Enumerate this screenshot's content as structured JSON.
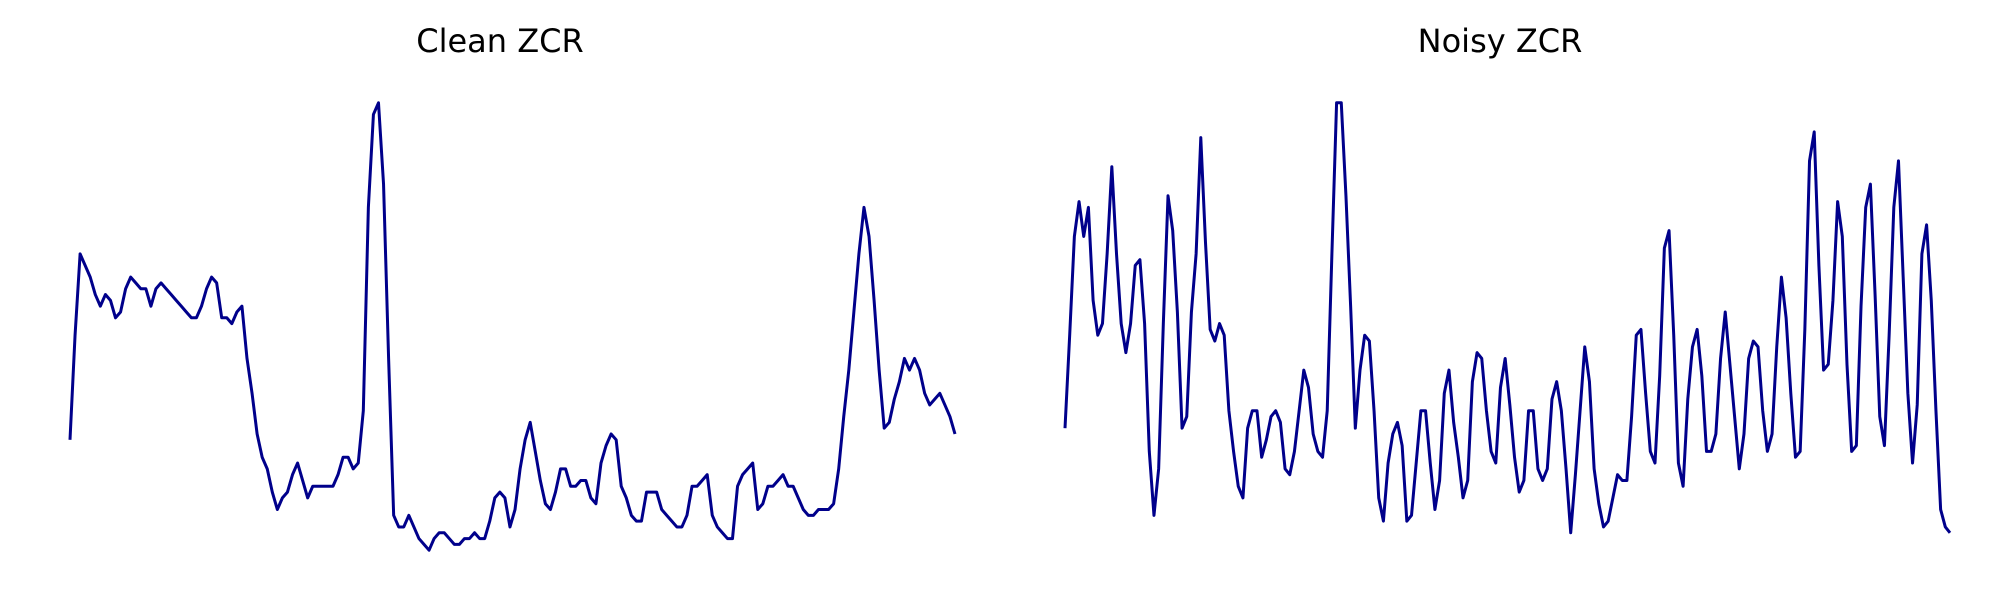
{
  "chart_data": [
    {
      "type": "line",
      "title": "Clean ZCR",
      "xlabel": "",
      "ylabel": "",
      "axes_visible": false,
      "grid": false,
      "line_color": "#00008b",
      "series": [
        {
          "values": [
            0.3,
            0.48,
            0.62,
            0.6,
            0.58,
            0.55,
            0.53,
            0.55,
            0.54,
            0.51,
            0.52,
            0.56,
            0.58,
            0.57,
            0.56,
            0.56,
            0.53,
            0.56,
            0.57,
            0.56,
            0.55,
            0.54,
            0.53,
            0.52,
            0.51,
            0.51,
            0.53,
            0.56,
            0.58,
            0.57,
            0.51,
            0.51,
            0.5,
            0.52,
            0.53,
            0.44,
            0.38,
            0.31,
            0.27,
            0.25,
            0.21,
            0.18,
            0.2,
            0.21,
            0.24,
            0.26,
            0.23,
            0.2,
            0.22,
            0.22,
            0.22,
            0.22,
            0.22,
            0.24,
            0.27,
            0.27,
            0.25,
            0.26,
            0.35,
            0.7,
            0.86,
            0.88,
            0.74,
            0.44,
            0.17,
            0.15,
            0.15,
            0.17,
            0.15,
            0.13,
            0.12,
            0.11,
            0.13,
            0.14,
            0.14,
            0.13,
            0.12,
            0.12,
            0.13,
            0.13,
            0.14,
            0.13,
            0.13,
            0.16,
            0.2,
            0.21,
            0.2,
            0.15,
            0.18,
            0.25,
            0.3,
            0.33,
            0.28,
            0.23,
            0.19,
            0.18,
            0.21,
            0.25,
            0.25,
            0.22,
            0.22,
            0.23,
            0.23,
            0.2,
            0.19,
            0.26,
            0.29,
            0.31,
            0.3,
            0.22,
            0.2,
            0.17,
            0.16,
            0.16,
            0.21,
            0.21,
            0.21,
            0.18,
            0.17,
            0.16,
            0.15,
            0.15,
            0.17,
            0.22,
            0.22,
            0.23,
            0.24,
            0.17,
            0.15,
            0.14,
            0.13,
            0.13,
            0.22,
            0.24,
            0.25,
            0.26,
            0.18,
            0.19,
            0.22,
            0.22,
            0.23,
            0.24,
            0.22,
            0.22,
            0.2,
            0.18,
            0.17,
            0.17,
            0.18,
            0.18,
            0.18,
            0.19,
            0.25,
            0.34,
            0.42,
            0.52,
            0.62,
            0.7,
            0.65,
            0.54,
            0.42,
            0.32,
            0.33,
            0.37,
            0.4,
            0.44,
            0.42,
            0.44,
            0.42,
            0.38,
            0.36,
            0.37,
            0.38,
            0.36,
            0.34,
            0.31
          ]
        }
      ]
    },
    {
      "type": "line",
      "title": "Noisy ZCR",
      "xlabel": "",
      "ylabel": "",
      "axes_visible": false,
      "grid": false,
      "line_color": "#00008b",
      "series": [
        {
          "values": [
            0.32,
            0.48,
            0.65,
            0.71,
            0.65,
            0.7,
            0.54,
            0.48,
            0.5,
            0.62,
            0.77,
            0.62,
            0.5,
            0.45,
            0.5,
            0.6,
            0.61,
            0.5,
            0.28,
            0.17,
            0.25,
            0.5,
            0.72,
            0.66,
            0.52,
            0.32,
            0.34,
            0.52,
            0.62,
            0.82,
            0.64,
            0.49,
            0.47,
            0.5,
            0.48,
            0.35,
            0.28,
            0.22,
            0.2,
            0.32,
            0.35,
            0.35,
            0.27,
            0.3,
            0.34,
            0.35,
            0.33,
            0.25,
            0.24,
            0.28,
            0.35,
            0.42,
            0.39,
            0.31,
            0.28,
            0.27,
            0.35,
            0.62,
            0.88,
            0.88,
            0.72,
            0.53,
            0.32,
            0.42,
            0.48,
            0.47,
            0.35,
            0.2,
            0.16,
            0.26,
            0.31,
            0.33,
            0.29,
            0.16,
            0.17,
            0.26,
            0.35,
            0.35,
            0.26,
            0.18,
            0.23,
            0.38,
            0.42,
            0.33,
            0.27,
            0.2,
            0.23,
            0.4,
            0.45,
            0.44,
            0.35,
            0.28,
            0.26,
            0.39,
            0.44,
            0.36,
            0.27,
            0.21,
            0.23,
            0.35,
            0.35,
            0.25,
            0.23,
            0.25,
            0.37,
            0.4,
            0.35,
            0.25,
            0.14,
            0.24,
            0.35,
            0.46,
            0.4,
            0.25,
            0.19,
            0.15,
            0.16,
            0.2,
            0.24,
            0.23,
            0.23,
            0.34,
            0.48,
            0.49,
            0.38,
            0.28,
            0.26,
            0.41,
            0.63,
            0.66,
            0.48,
            0.26,
            0.22,
            0.37,
            0.46,
            0.49,
            0.41,
            0.28,
            0.28,
            0.31,
            0.44,
            0.52,
            0.43,
            0.34,
            0.25,
            0.31,
            0.44,
            0.47,
            0.46,
            0.35,
            0.28,
            0.31,
            0.46,
            0.58,
            0.51,
            0.38,
            0.27,
            0.28,
            0.49,
            0.78,
            0.83,
            0.6,
            0.42,
            0.43,
            0.54,
            0.71,
            0.65,
            0.43,
            0.28,
            0.29,
            0.53,
            0.7,
            0.74,
            0.55,
            0.34,
            0.29,
            0.48,
            0.7,
            0.78,
            0.58,
            0.38,
            0.26,
            0.36,
            0.62,
            0.67,
            0.54,
            0.35,
            0.18,
            0.15,
            0.14
          ]
        }
      ]
    }
  ]
}
